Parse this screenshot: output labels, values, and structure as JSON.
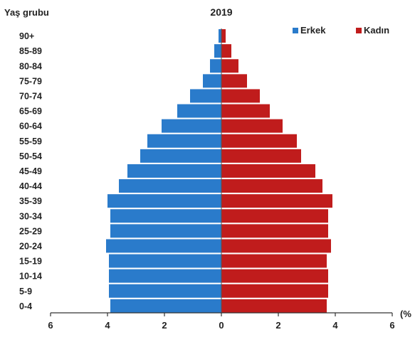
{
  "chart_data": {
    "type": "bar",
    "orientation": "horizontal",
    "layout": "population-pyramid",
    "title": "2019",
    "ylabel": "Yaş grubu",
    "xlabel": "(%",
    "categories": [
      "90+",
      "85-89",
      "80-84",
      "75-79",
      "70-74",
      "65-69",
      "60-64",
      "55-59",
      "50-54",
      "45-49",
      "40-44",
      "35-39",
      "30-34",
      "25-29",
      "20-24",
      "15-19",
      "10-14",
      "5-9",
      "0-4"
    ],
    "series": [
      {
        "name": "Erkek",
        "color": "#2a7bcb",
        "side": "left",
        "values": [
          0.1,
          0.25,
          0.4,
          0.65,
          1.1,
          1.55,
          2.1,
          2.6,
          2.85,
          3.3,
          3.6,
          4.0,
          3.9,
          3.9,
          4.05,
          3.95,
          3.95,
          3.95,
          3.9
        ]
      },
      {
        "name": "Kadın",
        "color": "#c01c1c",
        "side": "right",
        "values": [
          0.15,
          0.35,
          0.6,
          0.9,
          1.35,
          1.7,
          2.15,
          2.65,
          2.8,
          3.3,
          3.55,
          3.9,
          3.75,
          3.75,
          3.85,
          3.7,
          3.75,
          3.75,
          3.7
        ]
      }
    ],
    "xticks": [
      6,
      4,
      2,
      0,
      2,
      4,
      6
    ],
    "xlim": [
      -6,
      6
    ],
    "grid": false,
    "legend": "top-right"
  }
}
